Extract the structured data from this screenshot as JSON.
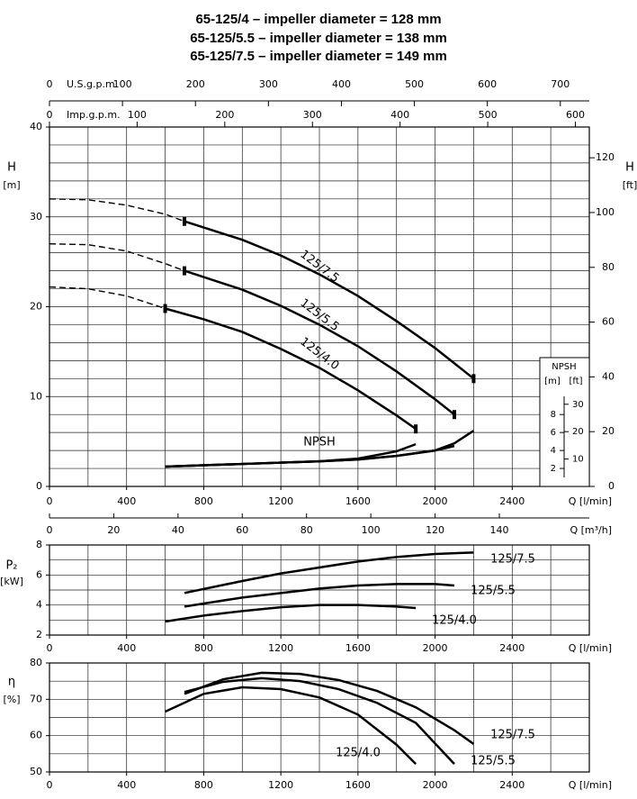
{
  "chart_data": [
    {
      "type": "line",
      "title": [
        "65-125/4 – impeller diameter = 128 mm",
        "65-125/5.5 – impeller diameter = 138 mm",
        "65-125/7.5 – impeller diameter = 149 mm"
      ],
      "ylabel": "H",
      "yunit": "[m]",
      "y2label": "H",
      "y2unit": "[ft]",
      "xlabel": "Q [l/min]",
      "xlim": [
        0,
        2800
      ],
      "xticks": [
        0,
        400,
        800,
        1200,
        1600,
        2000,
        2400
      ],
      "ylim": [
        0,
        40
      ],
      "yticks": [
        0,
        10,
        20,
        30,
        40
      ],
      "y2lim": [
        0,
        131.23
      ],
      "y2ticks": [
        0,
        20,
        40,
        60,
        80,
        100,
        120
      ],
      "grid": true,
      "xgrid": [
        0,
        200,
        400,
        600,
        800,
        1000,
        1200,
        1400,
        1600,
        1800,
        2000,
        2200,
        2400,
        2600,
        2800
      ],
      "ygrid": [
        0,
        2,
        4,
        6,
        8,
        10,
        12,
        14,
        16,
        18,
        20,
        22,
        24,
        26,
        28,
        30,
        32,
        34,
        36,
        38,
        40
      ],
      "us_gpm": {
        "label": "U.S.g.p.m.",
        "lim": [
          0,
          739.7
        ],
        "ticks": [
          0,
          100,
          200,
          300,
          400,
          500,
          600,
          700
        ]
      },
      "imp_gpm": {
        "label": "Imp.g.p.m.",
        "lim": [
          0,
          615.9
        ],
        "ticks": [
          0,
          100,
          200,
          300,
          400,
          500,
          600
        ]
      },
      "m3h": {
        "label": "Q [m³/h]",
        "lim": [
          0,
          168
        ],
        "ticks": [
          0,
          20,
          40,
          60,
          80,
          100,
          120,
          140
        ]
      },
      "inset": {
        "title": "NPSH",
        "units": [
          "[m]",
          "[ft]"
        ],
        "yticks": [
          2,
          4,
          6,
          8
        ],
        "y2ticks": [
          10,
          20,
          30
        ]
      },
      "annotation": "NPSH",
      "endmarkers": true,
      "series": [
        {
          "name": "125/7.5",
          "color": "#000000",
          "x": [
            700,
            1000,
            1200,
            1400,
            1600,
            1800,
            2000,
            2200
          ],
          "values": [
            29.5,
            27.45,
            25.7,
            23.6,
            21.2,
            18.4,
            15.4,
            12.0
          ]
        },
        {
          "name": "125/5.5",
          "color": "#000000",
          "x": [
            700,
            1000,
            1200,
            1400,
            1600,
            1800,
            2000,
            2100
          ],
          "values": [
            24.0,
            21.9,
            20.1,
            18.0,
            15.6,
            12.8,
            9.7,
            8.0
          ]
        },
        {
          "name": "125/4.0",
          "color": "#000000",
          "x": [
            600,
            800,
            1000,
            1200,
            1400,
            1600,
            1800,
            1900
          ],
          "values": [
            19.8,
            18.6,
            17.2,
            15.3,
            13.2,
            10.7,
            7.9,
            6.4
          ]
        },
        {
          "color": "#000000",
          "linestyle": "dashed",
          "x": [
            0,
            200,
            400,
            600,
            700
          ],
          "values": [
            32.0,
            31.9,
            31.3,
            30.3,
            29.5
          ]
        },
        {
          "color": "#000000",
          "linestyle": "dashed",
          "x": [
            0,
            200,
            400,
            600,
            700
          ],
          "values": [
            27.0,
            26.9,
            26.2,
            24.8,
            24.0
          ]
        },
        {
          "color": "#000000",
          "linestyle": "dashed",
          "x": [
            0,
            200,
            400,
            600
          ],
          "values": [
            22.2,
            22.0,
            21.2,
            19.8
          ]
        },
        {
          "color": "#000000",
          "x": [
            600,
            1000,
            1400,
            1600,
            1800,
            1900
          ],
          "values": [
            2.2,
            2.5,
            2.8,
            3.1,
            3.9,
            4.7
          ]
        },
        {
          "color": "#000000",
          "x": [
            600,
            1000,
            1400,
            1600,
            1800,
            2000,
            2100
          ],
          "values": [
            2.2,
            2.5,
            2.8,
            3.0,
            3.4,
            4.0,
            4.5
          ]
        },
        {
          "color": "#000000",
          "x": [
            600,
            1000,
            1400,
            1600,
            1800,
            2000,
            2100,
            2200
          ],
          "values": [
            2.2,
            2.5,
            2.8,
            3.0,
            3.4,
            4.0,
            4.8,
            6.2
          ]
        }
      ]
    },
    {
      "type": "line",
      "ylabel": "P₂",
      "yunit": "[kW]",
      "xlabel": "Q [l/min]",
      "xlim": [
        0,
        2800
      ],
      "xticks": [
        0,
        400,
        800,
        1200,
        1600,
        2000,
        2400
      ],
      "ylim": [
        2,
        8
      ],
      "yticks": [
        2,
        4,
        6,
        8
      ],
      "grid": true,
      "xgrid": [
        0,
        200,
        400,
        600,
        800,
        1000,
        1200,
        1400,
        1600,
        1800,
        2000,
        2200,
        2400,
        2600,
        2800
      ],
      "ygrid": [
        2,
        3,
        4,
        5,
        6,
        7,
        8
      ],
      "series": [
        {
          "name": "125/7.5",
          "color": "#000000",
          "x": [
            700,
            1000,
            1200,
            1400,
            1600,
            1800,
            2000,
            2200
          ],
          "values": [
            4.8,
            5.6,
            6.1,
            6.5,
            6.9,
            7.2,
            7.4,
            7.5
          ]
        },
        {
          "name": "125/5.5",
          "color": "#000000",
          "x": [
            700,
            1000,
            1200,
            1400,
            1600,
            1800,
            2000,
            2100
          ],
          "values": [
            3.9,
            4.5,
            4.8,
            5.1,
            5.3,
            5.4,
            5.4,
            5.3
          ]
        },
        {
          "name": "125/4.0",
          "color": "#000000",
          "x": [
            600,
            800,
            1000,
            1200,
            1400,
            1600,
            1800,
            1900
          ],
          "values": [
            2.9,
            3.3,
            3.6,
            3.85,
            4.0,
            4.0,
            3.9,
            3.8
          ]
        }
      ]
    },
    {
      "type": "line",
      "ylabel": "η",
      "yunit": "[%]",
      "xlabel": "Q [l/min]",
      "xlim": [
        0,
        2800
      ],
      "xticks": [
        0,
        400,
        800,
        1200,
        1600,
        2000,
        2400
      ],
      "ylim": [
        50,
        80
      ],
      "yticks": [
        50,
        60,
        70,
        80
      ],
      "grid": true,
      "xgrid": [
        0,
        200,
        400,
        600,
        800,
        1000,
        1200,
        1400,
        1600,
        1800,
        2000,
        2200,
        2400,
        2600,
        2800
      ],
      "ygrid": [
        50,
        55,
        60,
        65,
        70,
        75,
        80
      ],
      "series": [
        {
          "name": "125/7.5",
          "color": "#000000",
          "x": [
            700,
            900,
            1100,
            1300,
            1500,
            1700,
            1900,
            2100,
            2200
          ],
          "values": [
            71.5,
            75.5,
            77.3,
            77.0,
            75.3,
            72.3,
            67.8,
            61.5,
            57.7
          ]
        },
        {
          "name": "125/5.5",
          "color": "#000000",
          "x": [
            700,
            900,
            1100,
            1300,
            1500,
            1700,
            1900,
            2100
          ],
          "values": [
            72.0,
            74.8,
            75.8,
            75.0,
            72.8,
            69.0,
            63.5,
            52.2
          ]
        },
        {
          "name": "125/4.0",
          "color": "#000000",
          "x": [
            600,
            800,
            1000,
            1200,
            1400,
            1600,
            1800,
            1900
          ],
          "values": [
            66.6,
            71.5,
            73.3,
            72.8,
            70.5,
            65.8,
            57.5,
            52.2
          ]
        }
      ]
    }
  ]
}
